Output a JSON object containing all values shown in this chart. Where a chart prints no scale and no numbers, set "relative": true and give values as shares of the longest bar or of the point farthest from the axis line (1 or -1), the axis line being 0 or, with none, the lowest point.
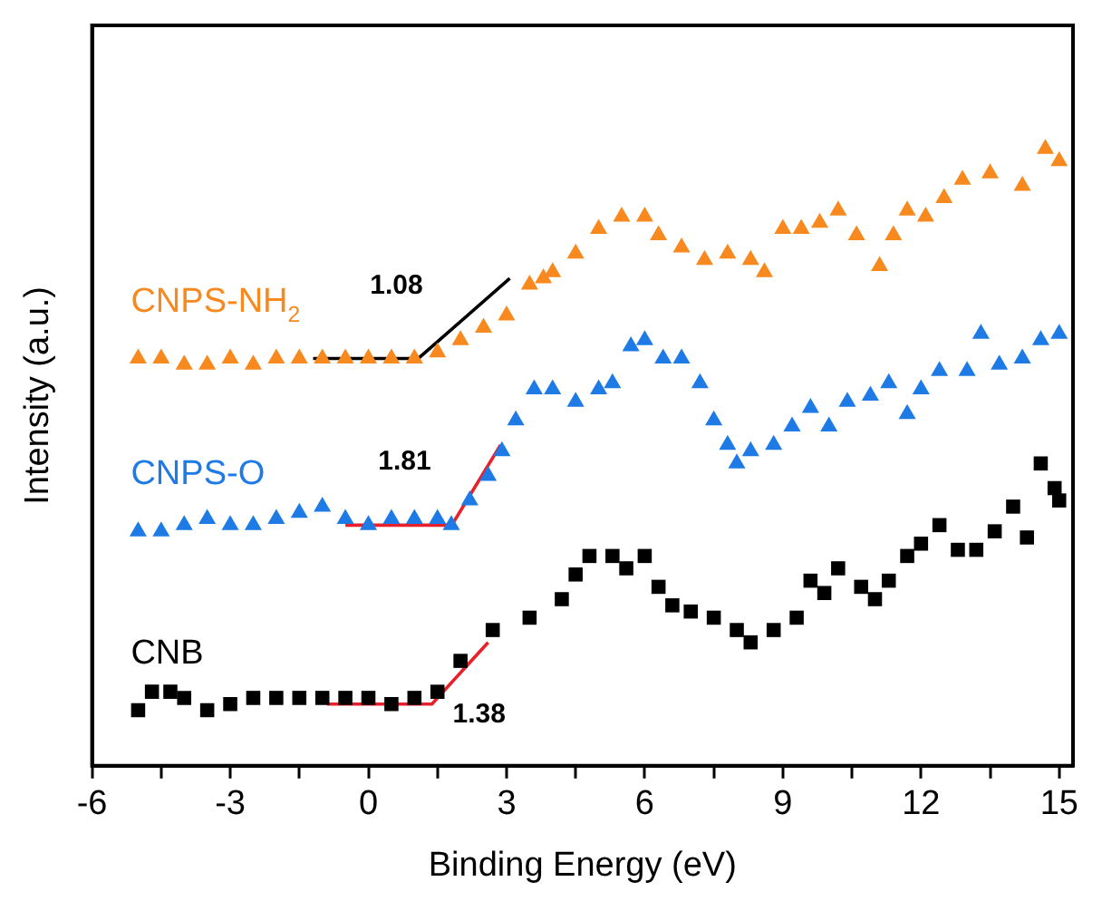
{
  "chart_data": {
    "type": "scatter",
    "xlabel": "Binding Energy (eV)",
    "ylabel": "Intensity (a.u.)",
    "relative": true,
    "xlim": [
      -6,
      15.3
    ],
    "xticks": [
      -6,
      {
        "value": -4.5,
        "label": null
      },
      -3,
      {
        "value": -1.5,
        "label": null
      },
      0,
      {
        "value": 1.5,
        "label": null
      },
      3,
      {
        "value": 4.5,
        "label": null
      },
      6,
      {
        "value": 7.5,
        "label": null
      },
      9,
      {
        "value": 10.5,
        "label": null
      },
      12,
      {
        "value": 13.5,
        "label": null
      },
      15
    ],
    "grid": false,
    "legend": false,
    "series": [
      {
        "name": "CNPS-NH$_{2}$",
        "color": "#f7891e",
        "marker": "triangle",
        "x": [
          -5,
          -4.5,
          -4,
          -3.5,
          -3,
          -2.5,
          -2,
          -1.5,
          -1,
          -0.5,
          0,
          0.5,
          1,
          1.5,
          2,
          2.5,
          3,
          3.5,
          3.8,
          4,
          4.5,
          5,
          5.5,
          6,
          6.3,
          6.8,
          7.3,
          7.8,
          8.3,
          8.6,
          9,
          9.4,
          9.8,
          10.2,
          10.6,
          11.1,
          11.4,
          11.7,
          12.1,
          12.5,
          12.9,
          13.5,
          14.2,
          14.7,
          15
        ],
        "values": [
          0.66,
          0.66,
          0.65,
          0.65,
          0.66,
          0.65,
          0.66,
          0.66,
          0.66,
          0.66,
          0.66,
          0.66,
          0.66,
          0.67,
          0.69,
          0.71,
          0.73,
          0.78,
          0.79,
          0.8,
          0.83,
          0.87,
          0.89,
          0.89,
          0.86,
          0.84,
          0.82,
          0.83,
          0.82,
          0.8,
          0.87,
          0.87,
          0.88,
          0.9,
          0.86,
          0.81,
          0.86,
          0.9,
          0.89,
          0.92,
          0.95,
          0.96,
          0.94,
          1.0,
          0.98
        ]
      },
      {
        "name": "CNPS-O",
        "color": "#1e7be6",
        "marker": "triangle",
        "x": [
          -5,
          -4.5,
          -4,
          -3.5,
          -3,
          -2.5,
          -2,
          -1.5,
          -1,
          -0.5,
          0,
          0.5,
          1,
          1.5,
          1.8,
          2.2,
          2.6,
          2.9,
          3.2,
          3.6,
          4,
          4.5,
          5,
          5.3,
          5.7,
          6,
          6.4,
          6.8,
          7.2,
          7.5,
          7.8,
          8,
          8.3,
          8.8,
          9.2,
          9.6,
          10,
          10.4,
          10.9,
          11.3,
          11.7,
          12,
          12.4,
          13,
          13.3,
          13.7,
          14.2,
          14.6,
          15
        ],
        "values": [
          0.38,
          0.38,
          0.39,
          0.4,
          0.39,
          0.39,
          0.4,
          0.41,
          0.42,
          0.4,
          0.39,
          0.4,
          0.4,
          0.4,
          0.39,
          0.43,
          0.47,
          0.51,
          0.56,
          0.61,
          0.61,
          0.59,
          0.61,
          0.62,
          0.68,
          0.69,
          0.66,
          0.66,
          0.62,
          0.56,
          0.52,
          0.49,
          0.51,
          0.52,
          0.55,
          0.58,
          0.55,
          0.59,
          0.6,
          0.62,
          0.57,
          0.61,
          0.64,
          0.64,
          0.7,
          0.65,
          0.66,
          0.69,
          0.7
        ]
      },
      {
        "name": "CNB",
        "color": "#000000",
        "marker": "square",
        "x": [
          -5,
          -4.7,
          -4.3,
          -4,
          -3.5,
          -3,
          -2.5,
          -2,
          -1.5,
          -1,
          -0.5,
          0,
          0.5,
          1,
          1.5,
          2,
          2.7,
          3.5,
          4.2,
          4.5,
          4.8,
          5.3,
          5.6,
          6,
          6.3,
          6.6,
          7,
          7.5,
          8,
          8.3,
          8.8,
          9.3,
          9.6,
          9.9,
          10.2,
          10.7,
          11,
          11.3,
          11.7,
          12,
          12.4,
          12.8,
          13.2,
          13.6,
          14,
          14.3,
          14.6,
          14.9,
          15
        ],
        "values": [
          0.09,
          0.12,
          0.12,
          0.11,
          0.09,
          0.1,
          0.11,
          0.11,
          0.11,
          0.11,
          0.11,
          0.11,
          0.1,
          0.11,
          0.12,
          0.17,
          0.22,
          0.24,
          0.27,
          0.31,
          0.34,
          0.34,
          0.32,
          0.34,
          0.29,
          0.26,
          0.25,
          0.24,
          0.22,
          0.2,
          0.22,
          0.24,
          0.3,
          0.28,
          0.32,
          0.29,
          0.27,
          0.3,
          0.34,
          0.36,
          0.39,
          0.35,
          0.35,
          0.38,
          0.42,
          0.37,
          0.49,
          0.45,
          0.43
        ]
      },
      {
        "type": "line",
        "color": "#000000",
        "marker": "none",
        "x": [
          -1.2,
          1.08,
          3.07
        ],
        "values": [
          0.66,
          0.66,
          0.79
        ]
      },
      {
        "type": "line",
        "color": "#e8202a",
        "marker": "none",
        "x": [
          -0.5,
          1.81,
          2.87
        ],
        "values": [
          0.39,
          0.39,
          0.52
        ]
      },
      {
        "type": "line",
        "color": "#e8202a",
        "marker": "none",
        "x": [
          -0.9,
          1.38,
          2.6
        ],
        "values": [
          0.1,
          0.1,
          0.2
        ]
      }
    ],
    "annotations": [
      {
        "text": "1.08",
        "x": 1.08,
        "y": 0.66
      },
      {
        "text": "1.81",
        "x": 1.81,
        "y": 0.39
      },
      {
        "text": "1.38",
        "x": 1.38,
        "y": 0.1
      }
    ]
  }
}
